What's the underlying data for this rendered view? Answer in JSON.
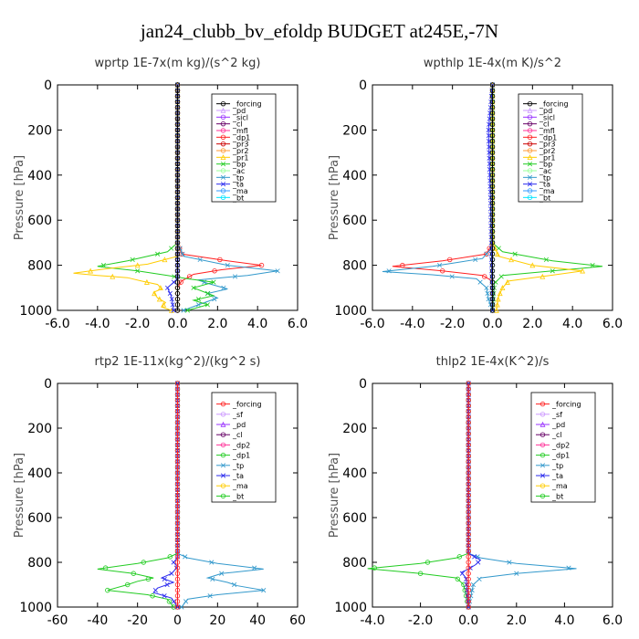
{
  "figure": {
    "title": "jan24_clubb_bv_efoldp  BUDGET at245E,-7N"
  },
  "chart_data": [
    {
      "type": "line",
      "title": "wprtp  1E-7x(m kg)/(s^2 kg)",
      "ylabel": "Pressure [hPa]",
      "xlim": [
        -6,
        6
      ],
      "ylim": [
        1000,
        0
      ],
      "x_ticks": [
        -6,
        -4,
        -2,
        0,
        2,
        4,
        6
      ],
      "x_tick_labels": [
        "-6.0",
        "-4.0",
        "-2.0",
        "0.0",
        "2.0",
        "4.0",
        "6.0"
      ],
      "y_ticks": [
        0,
        200,
        400,
        600,
        800,
        1000
      ],
      "y_tick_labels": [
        "0",
        "200",
        "400",
        "600",
        "800",
        "1000"
      ],
      "legend": [
        "_forcing",
        "_pd",
        "_sicl",
        "_cl",
        "_mfl",
        "_dp1",
        "_pr3",
        "_pr2",
        "_pr1",
        "_bp",
        "_ac",
        "_tp",
        "_ta",
        "_ma",
        "_bt"
      ],
      "legend_position": "top-right",
      "series": [
        {
          "name": "_dp1",
          "color": "#ff2020",
          "points": [
            [
              0,
              0
            ],
            [
              0,
              700
            ],
            [
              0.2,
              750
            ],
            [
              2.5,
              780
            ],
            [
              4.2,
              800
            ],
            [
              2.2,
              820
            ],
            [
              0.8,
              840
            ],
            [
              0.2,
              870
            ],
            [
              0,
              900
            ],
            [
              0,
              1000
            ]
          ]
        },
        {
          "name": "_tp",
          "color": "#3399cc",
          "points": [
            [
              0,
              0
            ],
            [
              0,
              700
            ],
            [
              0.3,
              760
            ],
            [
              2.5,
              800
            ],
            [
              5.0,
              825
            ],
            [
              3.5,
              845
            ],
            [
              1.0,
              865
            ],
            [
              1.5,
              880
            ],
            [
              2.5,
              905
            ],
            [
              1.5,
              925
            ],
            [
              2.0,
              945
            ],
            [
              1.2,
              970
            ],
            [
              0.6,
              990
            ],
            [
              0.3,
              1000
            ]
          ]
        },
        {
          "name": "_bp",
          "color": "#22cc22",
          "points": [
            [
              0,
              0
            ],
            [
              0,
              700
            ],
            [
              -0.5,
              740
            ],
            [
              -2.5,
              780
            ],
            [
              -4.0,
              805
            ],
            [
              -2.0,
              825
            ],
            [
              -0.5,
              845
            ],
            [
              0.5,
              860
            ],
            [
              1.8,
              875
            ],
            [
              0.8,
              900
            ],
            [
              1.8,
              935
            ],
            [
              0.8,
              955
            ],
            [
              1.5,
              975
            ],
            [
              0.5,
              1000
            ]
          ]
        },
        {
          "name": "_pr1",
          "color": "#ffcc00",
          "points": [
            [
              0,
              0
            ],
            [
              0,
              760
            ],
            [
              -1.5,
              795
            ],
            [
              -3.5,
              815
            ],
            [
              -5.2,
              835
            ],
            [
              -4.0,
              845
            ],
            [
              -2.5,
              855
            ],
            [
              -1.8,
              870
            ],
            [
              -1.0,
              885
            ],
            [
              -0.8,
              905
            ],
            [
              -1.2,
              920
            ],
            [
              -1.0,
              945
            ],
            [
              -0.6,
              965
            ],
            [
              -0.8,
              985
            ],
            [
              -0.3,
              1000
            ]
          ]
        },
        {
          "name": "_pr3",
          "color": "#cc0000",
          "points": [
            [
              0,
              0
            ],
            [
              0,
              1000
            ]
          ]
        },
        {
          "name": "_ac",
          "color": "#99ff99",
          "points": [
            [
              0,
              0
            ],
            [
              0,
              1000
            ]
          ]
        },
        {
          "name": "_ta",
          "color": "#2a2aee",
          "points": [
            [
              0,
              0
            ],
            [
              0,
              860
            ],
            [
              -0.5,
              900
            ],
            [
              -0.3,
              940
            ],
            [
              -0.2,
              1000
            ]
          ]
        },
        {
          "name": "_forcing",
          "color": "#000000",
          "points": [
            [
              0,
              0
            ],
            [
              0,
              1000
            ]
          ]
        }
      ]
    },
    {
      "type": "line",
      "title": "wpthlp  1E-4x(m K)/s^2",
      "ylabel": "Pressure [hPa]",
      "xlim": [
        -6,
        6
      ],
      "ylim": [
        1000,
        0
      ],
      "x_ticks": [
        -6,
        -4,
        -2,
        0,
        2,
        4,
        6
      ],
      "x_tick_labels": [
        "-6.0",
        "-4.0",
        "-2.0",
        "0.0",
        "2.0",
        "4.0",
        "6.0"
      ],
      "y_ticks": [
        0,
        200,
        400,
        600,
        800,
        1000
      ],
      "y_tick_labels": [
        "0",
        "200",
        "400",
        "600",
        "800",
        "1000"
      ],
      "legend": [
        "_forcing",
        "_pd",
        "_sicl",
        "_cl",
        "_mfl",
        "_dp1",
        "_pr3",
        "_pr2",
        "_pr1",
        "_bp",
        "_ac",
        "_tp",
        "_ta",
        "_ma",
        "_bt"
      ],
      "legend_position": "top-right",
      "series": [
        {
          "name": "_dp1",
          "color": "#ff2020",
          "points": [
            [
              0,
              0
            ],
            [
              0,
              700
            ],
            [
              -0.3,
              750
            ],
            [
              -2.5,
              780
            ],
            [
              -5.0,
              805
            ],
            [
              -2.5,
              825
            ],
            [
              -0.5,
              845
            ],
            [
              0,
              870
            ],
            [
              0,
              1000
            ]
          ]
        },
        {
          "name": "_tp",
          "color": "#3399cc",
          "points": [
            [
              0,
              0
            ],
            [
              0,
              720
            ],
            [
              -0.5,
              770
            ],
            [
              -3.0,
              805
            ],
            [
              -5.5,
              828
            ],
            [
              -3.0,
              842
            ],
            [
              -0.8,
              860
            ],
            [
              -0.3,
              900
            ],
            [
              -0.2,
              950
            ],
            [
              0,
              1000
            ]
          ]
        },
        {
          "name": "_bp",
          "color": "#22cc22",
          "points": [
            [
              0,
              0
            ],
            [
              0,
              700
            ],
            [
              0.5,
              740
            ],
            [
              3.0,
              780
            ],
            [
              5.5,
              805
            ],
            [
              3.0,
              825
            ],
            [
              0.5,
              845
            ],
            [
              0.1,
              880
            ],
            [
              0,
              1000
            ]
          ]
        },
        {
          "name": "_pr1",
          "color": "#ffcc00",
          "points": [
            [
              0,
              0
            ],
            [
              0,
              700
            ],
            [
              0.3,
              760
            ],
            [
              2.0,
              800
            ],
            [
              4.5,
              825
            ],
            [
              2.5,
              850
            ],
            [
              0.8,
              870
            ],
            [
              0.5,
              900
            ],
            [
              0.3,
              940
            ],
            [
              0.2,
              1000
            ]
          ]
        },
        {
          "name": "_ta",
          "color": "#2a2aee",
          "points": [
            [
              0,
              0
            ],
            [
              -0.2,
              200
            ],
            [
              -0.1,
              500
            ],
            [
              0,
              1000
            ]
          ]
        },
        {
          "name": "_ac",
          "color": "#99ff99",
          "points": [
            [
              0,
              0
            ],
            [
              0,
              1000
            ]
          ]
        },
        {
          "name": "_forcing",
          "color": "#000000",
          "points": [
            [
              0,
              0
            ],
            [
              0,
              1000
            ]
          ]
        }
      ]
    },
    {
      "type": "line",
      "title": "rtp2  1E-11x(kg^2)/(kg^2 s)",
      "ylabel": "Pressure [hPa]",
      "xlim": [
        -60,
        60
      ],
      "ylim": [
        1000,
        0
      ],
      "x_ticks": [
        -60,
        -40,
        -20,
        0,
        20,
        40,
        60
      ],
      "x_tick_labels": [
        "-60",
        "-40",
        "-20",
        "0",
        "20",
        "40",
        "60"
      ],
      "y_ticks": [
        0,
        200,
        400,
        600,
        800,
        1000
      ],
      "y_tick_labels": [
        "0",
        "200",
        "400",
        "600",
        "800",
        "1000"
      ],
      "legend": [
        "_forcing",
        "_sf",
        "_pd",
        "_cl",
        "_dp2",
        "_dp1",
        "_tp",
        "_ta",
        "_ma",
        "_bt"
      ],
      "legend_position": "top-right",
      "series": [
        {
          "name": "_dp1",
          "color": "#22cc22",
          "points": [
            [
              0,
              0
            ],
            [
              0,
              760
            ],
            [
              -5,
              780
            ],
            [
              -20,
              805
            ],
            [
              -40,
              830
            ],
            [
              -22,
              850
            ],
            [
              -12,
              870
            ],
            [
              -20,
              885
            ],
            [
              -25,
              900
            ],
            [
              -35,
              925
            ],
            [
              -15,
              945
            ],
            [
              -5,
              965
            ],
            [
              -2,
              1000
            ]
          ]
        },
        {
          "name": "_tp",
          "color": "#3399cc",
          "points": [
            [
              0,
              0
            ],
            [
              0,
              760
            ],
            [
              5,
              780
            ],
            [
              20,
              805
            ],
            [
              43,
              830
            ],
            [
              22,
              850
            ],
            [
              15,
              870
            ],
            [
              25,
              890
            ],
            [
              30,
              905
            ],
            [
              43,
              925
            ],
            [
              20,
              945
            ],
            [
              5,
              965
            ],
            [
              2,
              1000
            ]
          ]
        },
        {
          "name": "_ta",
          "color": "#2a2aee",
          "points": [
            [
              0,
              0
            ],
            [
              0,
              780
            ],
            [
              -2,
              800
            ],
            [
              0,
              820
            ],
            [
              -3,
              850
            ],
            [
              -8,
              870
            ],
            [
              -2,
              890
            ],
            [
              -10,
              915
            ],
            [
              -12,
              935
            ],
            [
              -3,
              960
            ],
            [
              0,
              1000
            ]
          ]
        },
        {
          "name": "_forcing",
          "color": "#ff2020",
          "points": [
            [
              0,
              0
            ],
            [
              0,
              1000
            ]
          ]
        }
      ]
    },
    {
      "type": "line",
      "title": "thlp2  1E-4x(K^2)/s",
      "ylabel": "Pressure [hPa]",
      "xlim": [
        -4,
        6
      ],
      "ylim": [
        1000,
        0
      ],
      "x_ticks": [
        -4,
        -2,
        0,
        2,
        4,
        6
      ],
      "x_tick_labels": [
        "-4.0",
        "-2.0",
        "0.0",
        "2.0",
        "4.0",
        "6.0"
      ],
      "y_ticks": [
        0,
        200,
        400,
        600,
        800,
        1000
      ],
      "y_tick_labels": [
        "0",
        "200",
        "400",
        "600",
        "800",
        "1000"
      ],
      "legend": [
        "_forcing",
        "_sf",
        "_pd",
        "_cl",
        "_dp2",
        "_dp1",
        "_tp",
        "_ta",
        "_ma",
        "_bt"
      ],
      "legend_position": "top-right",
      "series": [
        {
          "name": "_dp1",
          "color": "#22cc22",
          "points": [
            [
              0,
              0
            ],
            [
              0,
              760
            ],
            [
              -0.5,
              780
            ],
            [
              -2.0,
              805
            ],
            [
              -4.2,
              828
            ],
            [
              -2.0,
              850
            ],
            [
              -0.5,
              870
            ],
            [
              -0.2,
              900
            ],
            [
              -0.1,
              950
            ],
            [
              0,
              1000
            ]
          ]
        },
        {
          "name": "_tp",
          "color": "#3399cc",
          "points": [
            [
              0,
              0
            ],
            [
              0,
              760
            ],
            [
              0.5,
              780
            ],
            [
              2.0,
              805
            ],
            [
              4.5,
              828
            ],
            [
              2.0,
              850
            ],
            [
              0.5,
              870
            ],
            [
              0.2,
              900
            ],
            [
              0.1,
              950
            ],
            [
              0,
              1000
            ]
          ]
        },
        {
          "name": "_ta",
          "color": "#2a2aee",
          "points": [
            [
              0,
              0
            ],
            [
              0,
              760
            ],
            [
              0.5,
              790
            ],
            [
              0.3,
              810
            ],
            [
              0,
              830
            ],
            [
              -0.3,
              845
            ],
            [
              -0.1,
              870
            ],
            [
              0,
              1000
            ]
          ]
        },
        {
          "name": "_forcing",
          "color": "#ff2020",
          "points": [
            [
              0,
              0
            ],
            [
              0,
              1000
            ]
          ]
        }
      ]
    }
  ]
}
